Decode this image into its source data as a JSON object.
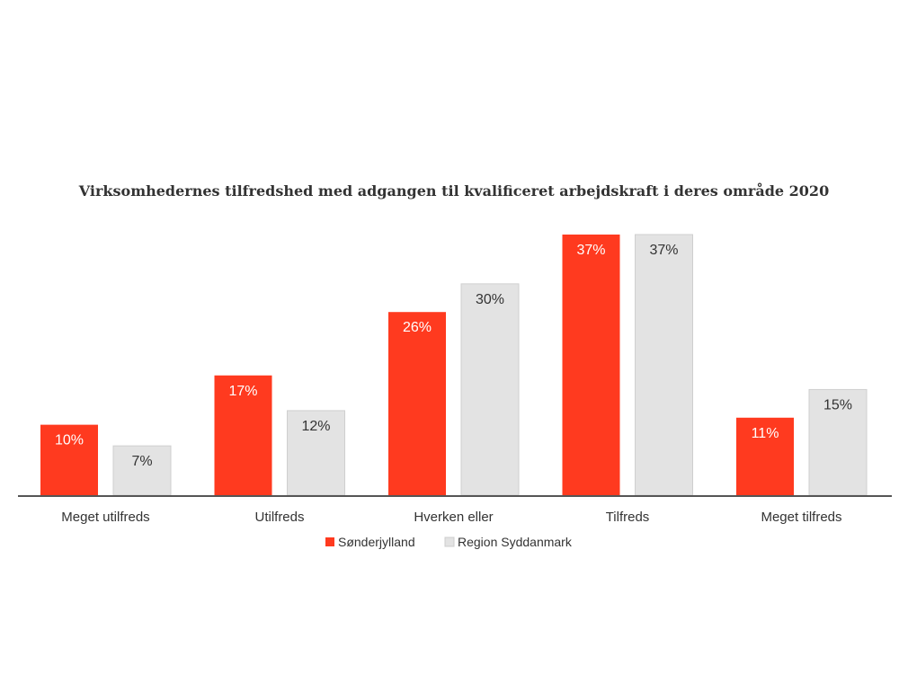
{
  "chart_data": {
    "type": "bar",
    "title": "Virksomhedernes tilfredshed med adgangen til kvalificeret arbejdskraft i deres område 2020",
    "categories": [
      "Meget utilfreds",
      "Utilfreds",
      "Hverken eller",
      "Tilfreds",
      "Meget tilfreds"
    ],
    "series": [
      {
        "name": "Sønderjylland",
        "values": [
          10,
          17,
          26,
          37,
          11
        ],
        "color": "#ff3a1f",
        "label_color": "#ffffff"
      },
      {
        "name": "Region Syddanmark",
        "values": [
          7,
          12,
          30,
          37,
          15
        ],
        "color": "#e3e3e3",
        "label_color": "#333333"
      }
    ],
    "value_suffix": "%",
    "ylim": [
      0,
      37
    ],
    "grid": false,
    "legend_position": "bottom-center",
    "xlabel": "",
    "ylabel": ""
  }
}
